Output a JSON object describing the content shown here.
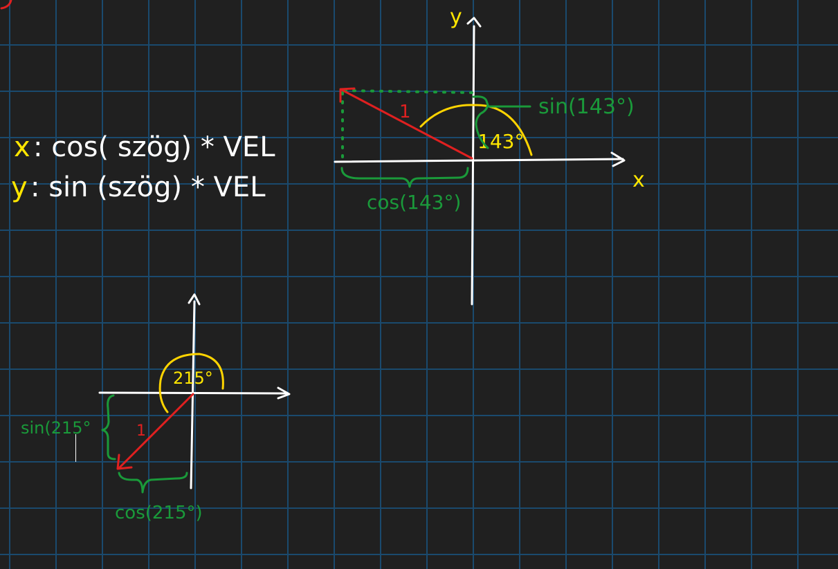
{
  "formulas": {
    "x_prefix": "x",
    "x_rest": ": cos( szög) * VEL",
    "y_prefix": "y",
    "y_rest": ": sin (szög) * VEL"
  },
  "diagram_top": {
    "y_axis_label": "y",
    "x_axis_label": "x",
    "vector_length_label": "1",
    "angle_label": "143°",
    "sin_label": "sin(143°)",
    "cos_label": "cos(143°)"
  },
  "diagram_bottom": {
    "vector_length_label": "1",
    "angle_label": "215°",
    "sin_label": "sin(215°",
    "cos_label": "cos(215°)"
  },
  "colors": {
    "background": "#202020",
    "grid": "#1a4a6e",
    "axis": "#ffffff",
    "angle_arc": "#ffd400",
    "vector": "#e02020",
    "projection": "#1a9a3a",
    "formula_var": "#ffe600"
  }
}
